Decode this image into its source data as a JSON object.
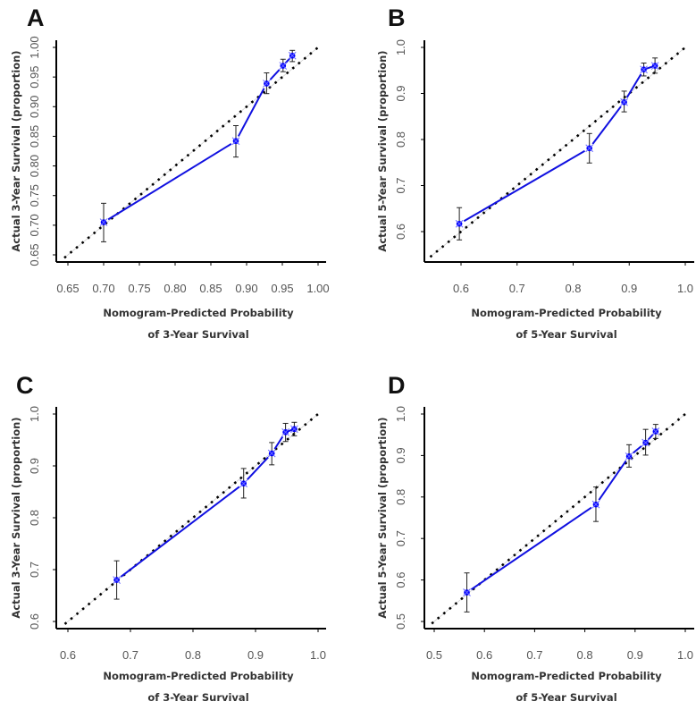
{
  "colors": {
    "line": "#1010e0",
    "marker": "#0000ff",
    "diagonal": "#000000",
    "errorbar": "#222222"
  },
  "chart_data": [
    {
      "type": "line",
      "panel": "A",
      "xlabel": [
        "Nomogram-Predicted Probability",
        "of 3-Year Survival"
      ],
      "ylabel": "Actual 3-Year Survival  (proportion)",
      "xticks": [
        "0.65",
        "0.70",
        "0.75",
        "0.80",
        "0.85",
        "0.90",
        "0.95",
        "1.00"
      ],
      "yticks": [
        "0.65",
        "0.70",
        "0.75",
        "0.80",
        "0.85",
        "0.90",
        "0.95",
        "1.00"
      ],
      "xlim": [
        0.635,
        1.01
      ],
      "ylim": [
        0.635,
        1.01
      ],
      "diagonal_start": 0.645,
      "points": [
        {
          "x": 0.7,
          "y": 0.705,
          "lo": 0.672,
          "hi": 0.737
        },
        {
          "x": 0.885,
          "y": 0.842,
          "lo": 0.815,
          "hi": 0.868
        },
        {
          "x": 0.928,
          "y": 0.939,
          "lo": 0.922,
          "hi": 0.957
        },
        {
          "x": 0.951,
          "y": 0.969,
          "lo": 0.959,
          "hi": 0.98
        },
        {
          "x": 0.964,
          "y": 0.986,
          "lo": 0.976,
          "hi": 0.995
        }
      ]
    },
    {
      "type": "line",
      "panel": "B",
      "xlabel": [
        "Nomogram-Predicted Probability",
        "of 5-Year Survival"
      ],
      "ylabel": "Actual 5-Year Survival  (proportion)",
      "xticks": [
        "0.6",
        "0.7",
        "0.8",
        "0.9",
        "1.0"
      ],
      "yticks": [
        "0.6",
        "0.7",
        "0.8",
        "0.9",
        "1.0"
      ],
      "xlim": [
        0.535,
        1.01
      ],
      "ylim": [
        0.535,
        1.01
      ],
      "diagonal_start": 0.545,
      "points": [
        {
          "x": 0.597,
          "y": 0.617,
          "lo": 0.582,
          "hi": 0.652
        },
        {
          "x": 0.829,
          "y": 0.781,
          "lo": 0.749,
          "hi": 0.813
        },
        {
          "x": 0.891,
          "y": 0.881,
          "lo": 0.86,
          "hi": 0.905
        },
        {
          "x": 0.926,
          "y": 0.952,
          "lo": 0.938,
          "hi": 0.966
        },
        {
          "x": 0.946,
          "y": 0.96,
          "lo": 0.944,
          "hi": 0.977
        }
      ]
    },
    {
      "type": "line",
      "panel": "C",
      "xlabel": [
        "Nomogram-Predicted Probability",
        "of 3-Year Survival"
      ],
      "ylabel": "Actual 3-Year Survival  (proportion)",
      "xticks": [
        "0.6",
        "0.7",
        "0.8",
        "0.9",
        "1.0"
      ],
      "yticks": [
        "0.6",
        "0.7",
        "0.8",
        "0.9",
        "1.0"
      ],
      "xlim": [
        0.585,
        1.01
      ],
      "ylim": [
        0.585,
        1.01
      ],
      "diagonal_start": 0.595,
      "points": [
        {
          "x": 0.678,
          "y": 0.68,
          "lo": 0.643,
          "hi": 0.717
        },
        {
          "x": 0.881,
          "y": 0.866,
          "lo": 0.838,
          "hi": 0.895
        },
        {
          "x": 0.926,
          "y": 0.924,
          "lo": 0.902,
          "hi": 0.945
        },
        {
          "x": 0.948,
          "y": 0.965,
          "lo": 0.947,
          "hi": 0.982
        },
        {
          "x": 0.962,
          "y": 0.971,
          "lo": 0.958,
          "hi": 0.984
        }
      ]
    },
    {
      "type": "line",
      "panel": "D",
      "xlabel": [
        "Nomogram-Predicted Probability",
        "of 5-Year Survival"
      ],
      "ylabel": "Actual 5-Year Survival  (proportion)",
      "xticks": [
        "0.5",
        "0.6",
        "0.7",
        "0.8",
        "0.9",
        "1.0"
      ],
      "yticks": [
        "0.5",
        "0.6",
        "0.7",
        "0.8",
        "0.9",
        "1.0"
      ],
      "xlim": [
        0.485,
        1.01
      ],
      "ylim": [
        0.485,
        1.01
      ],
      "diagonal_start": 0.495,
      "points": [
        {
          "x": 0.565,
          "y": 0.57,
          "lo": 0.523,
          "hi": 0.617
        },
        {
          "x": 0.822,
          "y": 0.782,
          "lo": 0.741,
          "hi": 0.824
        },
        {
          "x": 0.888,
          "y": 0.898,
          "lo": 0.872,
          "hi": 0.926
        },
        {
          "x": 0.921,
          "y": 0.931,
          "lo": 0.901,
          "hi": 0.963
        },
        {
          "x": 0.941,
          "y": 0.958,
          "lo": 0.941,
          "hi": 0.975
        }
      ]
    }
  ]
}
